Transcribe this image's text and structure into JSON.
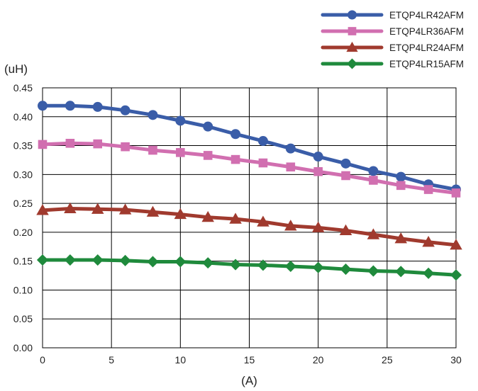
{
  "chart_data": {
    "type": "line",
    "xlabel": "(A)",
    "ylabel": "(uH)",
    "xlim": [
      0,
      30
    ],
    "ylim": [
      0,
      0.45
    ],
    "xticks": [
      0,
      5,
      10,
      15,
      20,
      25,
      30
    ],
    "xtick_labels": [
      "0",
      "5",
      "10",
      "15",
      "20",
      "25",
      "30"
    ],
    "yticks": [
      0,
      0.05,
      0.1,
      0.15,
      0.2,
      0.25,
      0.3,
      0.35,
      0.4,
      0.45
    ],
    "ytick_labels": [
      "0.00",
      "0.05",
      "0.10",
      "0.15",
      "0.20",
      "0.25",
      "0.30",
      "0.35",
      "0.40",
      "0.45"
    ],
    "grid": true,
    "legend_position": "top-right",
    "x": [
      0,
      2,
      4,
      6,
      8,
      10,
      12,
      14,
      16,
      18,
      20,
      22,
      24,
      26,
      28,
      30
    ],
    "series": [
      {
        "name": "ETQP4LR42AFM",
        "color": "#3a5da8",
        "marker": "circle",
        "values": [
          0.419,
          0.419,
          0.417,
          0.411,
          0.403,
          0.393,
          0.383,
          0.37,
          0.358,
          0.345,
          0.331,
          0.319,
          0.306,
          0.296,
          0.283,
          0.274
        ]
      },
      {
        "name": "ETQP4LR36AFM",
        "color": "#d16fb0",
        "marker": "square",
        "values": [
          0.352,
          0.354,
          0.353,
          0.348,
          0.342,
          0.338,
          0.333,
          0.326,
          0.32,
          0.313,
          0.305,
          0.298,
          0.29,
          0.281,
          0.274,
          0.268
        ]
      },
      {
        "name": "ETQP4LR24AFM",
        "color": "#a03a2e",
        "marker": "triangle",
        "values": [
          0.238,
          0.241,
          0.24,
          0.239,
          0.235,
          0.231,
          0.226,
          0.223,
          0.218,
          0.211,
          0.208,
          0.203,
          0.196,
          0.189,
          0.183,
          0.178
        ]
      },
      {
        "name": "ETQP4LR15AFM",
        "color": "#1f8a3c",
        "marker": "diamond",
        "values": [
          0.152,
          0.152,
          0.152,
          0.151,
          0.149,
          0.149,
          0.147,
          0.144,
          0.143,
          0.141,
          0.139,
          0.136,
          0.133,
          0.132,
          0.129,
          0.126
        ]
      }
    ]
  }
}
